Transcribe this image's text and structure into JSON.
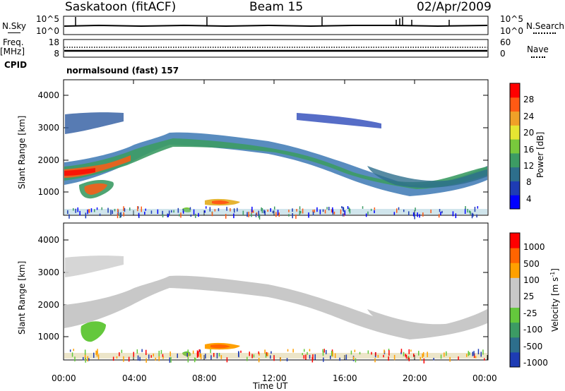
{
  "header": {
    "station": "Saskatoon (fitACF)",
    "beam": "Beam 15",
    "date": "02/Apr/2009"
  },
  "noise_panel": {
    "left_label": "N.Sky",
    "right_label": "N.Search",
    "left_ticks": [
      "10^5",
      "10^0"
    ],
    "right_ticks": [
      "10^5",
      "10^0"
    ]
  },
  "freq_panel": {
    "left_label_line1": "Freq.",
    "left_label_line2": "[MHz]",
    "right_label": "Nave",
    "left_ticks": [
      "18",
      "8"
    ],
    "right_ticks": [
      "60",
      "0"
    ]
  },
  "cpid_panel": {
    "label": "CPID",
    "text": "normalsound (fast) 157"
  },
  "power_panel": {
    "ylabel": "Slant Range [km]",
    "yticks": [
      "4000",
      "3000",
      "2000",
      "1000"
    ],
    "colorbar_label": "Power [dB]",
    "colorbar_ticks": [
      "28",
      "24",
      "20",
      "16",
      "12",
      "8",
      "4"
    ],
    "colorbar_colors": [
      "#0000ff",
      "#1e3cb4",
      "#2d6e8c",
      "#3c9b64",
      "#78c83c",
      "#e6e632",
      "#f0a028",
      "#ff5a14",
      "#ff0000"
    ]
  },
  "velocity_panel": {
    "ylabel": "Slant Range [km]",
    "yticks": [
      "4000",
      "3000",
      "2000",
      "1000"
    ],
    "colorbar_label": "Velocity [m s",
    "colorbar_label_sup": "-1",
    "colorbar_label_end": "]",
    "colorbar_ticks": [
      "1000",
      "500",
      "100",
      "25",
      "-25",
      "-100",
      "-500",
      "-1000"
    ],
    "colorbar_colors": [
      "#1e3cb4",
      "#2d6e8c",
      "#3c9b64",
      "#64c83c",
      "#c8c8c8",
      "#c8c8c8",
      "#ffa000",
      "#ff6400",
      "#ff0000"
    ]
  },
  "xaxis": {
    "ticks": [
      "00:00",
      "04:00",
      "08:00",
      "12:00",
      "16:00",
      "20:00",
      "00:00"
    ],
    "label": "Time UT"
  },
  "chart_data": {
    "type": "heatmap",
    "title": "Saskatoon (fitACF)",
    "xlabel": "Time UT",
    "ylabel": "Slant Range [km]",
    "xlim": [
      "00:00",
      "24:00"
    ],
    "ylim": [
      180,
      4500
    ],
    "power_range_db": [
      0,
      30
    ],
    "velocity_range_ms": [
      -1000,
      1000
    ],
    "main_echo_band": {
      "time_h": [
        0,
        1,
        2,
        3,
        4,
        5,
        6,
        8,
        10,
        12,
        14,
        16,
        17,
        18,
        20,
        22,
        24
      ],
      "range_km": [
        1500,
        1600,
        1700,
        1900,
        2300,
        2500,
        2650,
        2550,
        2500,
        2350,
        2100,
        1800,
        1600,
        1400,
        1300,
        1500,
        1800
      ]
    }
  }
}
